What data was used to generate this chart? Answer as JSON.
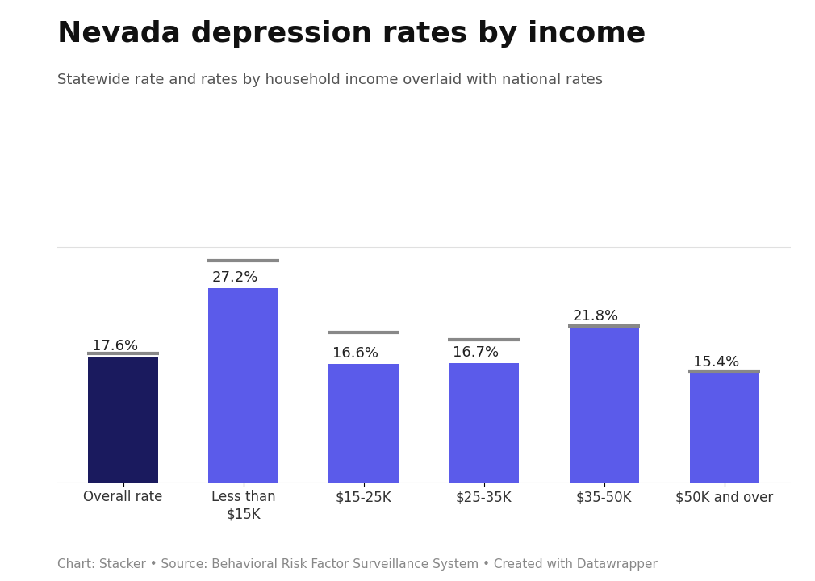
{
  "categories": [
    "Overall rate",
    "Less than\n$15K",
    "$15-25K",
    "$25-35K",
    "$35-50K",
    "$50K and over"
  ],
  "values": [
    17.6,
    27.2,
    16.6,
    16.7,
    21.8,
    15.4
  ],
  "national_rates": [
    18.0,
    31.0,
    21.0,
    20.0,
    21.9,
    15.6
  ],
  "bar_colors": [
    "#1a1a5e",
    "#5b5bea",
    "#5b5bea",
    "#5b5bea",
    "#5b5bea",
    "#5b5bea"
  ],
  "national_line_color": "#888888",
  "title": "Nevada depression rates by income",
  "subtitle": "Statewide rate and rates by household income overlaid with national rates",
  "footnote": "Chart: Stacker • Source: Behavioral Risk Factor Surveillance System • Created with Datawrapper",
  "ylim": [
    0,
    35
  ],
  "title_fontsize": 26,
  "subtitle_fontsize": 13,
  "tick_fontsize": 12,
  "footnote_fontsize": 11,
  "background_color": "#ffffff",
  "bar_width": 0.58,
  "value_label_fontsize": 13
}
